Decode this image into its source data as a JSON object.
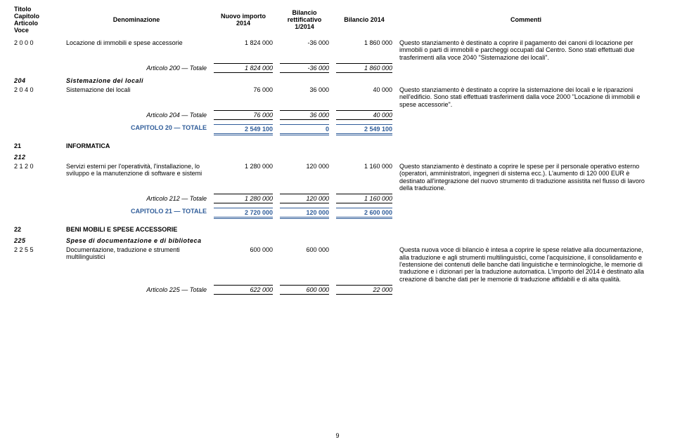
{
  "header": {
    "col1": "Titolo\nCapitolo\nArticolo\nVoce",
    "col2": "Denominazione",
    "col3": "Nuovo importo\n2014",
    "col4": "Bilancio\nrettificativo\n1/2014",
    "col5": "Bilancio 2014",
    "col6": "Commenti"
  },
  "rows": {
    "r2000": {
      "code": "2 0 0 0",
      "denom": "Locazione di immobili e spese accessorie",
      "v1": "1 824 000",
      "v2": "-36 000",
      "v3": "1 860 000",
      "comment": "Questo stanziamento è destinato a coprire il pagamento dei canoni di locazione per immobili o parti di immobili e parcheggi occupati dal Centro. Sono stati effettuati due trasferimenti alla voce 2040 \"Sistemazione dei locali\"."
    },
    "a200t": {
      "label": "Articolo 200 — Totale",
      "v1": "1 824 000",
      "v2": "-36 000",
      "v3": "1 860 000"
    },
    "s204": {
      "code": "204",
      "denom": "Sistemazione dei locali"
    },
    "r2040": {
      "code": "2 0 4 0",
      "denom": "Sistemazione dei locali",
      "v1": "76 000",
      "v2": "36 000",
      "v3": "40 000",
      "comment": "Questo stanziamento è destinato a coprire la sistemazione dei locali e le riparazioni nell'edificio. Sono stati effettuati trasferimenti dalla voce 2000 \"Locazione di immobili e spese accessorie\"."
    },
    "a204t": {
      "label": "Articolo 204 — Totale",
      "v1": "76 000",
      "v2": "36 000",
      "v3": "40 000"
    },
    "cap20": {
      "label": "CAPITOLO 20 — TOTALE",
      "v1": "2 549 100",
      "v2": "0",
      "v3": "2 549 100"
    },
    "s21": {
      "code": "21",
      "denom": "INFORMATICA"
    },
    "s212": {
      "code": "212",
      "denom": ""
    },
    "r2120": {
      "code": "2 1 2 0",
      "denom": "Servizi esterni per l'operatività, l'installazione, lo sviluppo e la manutenzione di software e sistemi",
      "v1": "1 280 000",
      "v2": "120 000",
      "v3": "1 160 000",
      "comment": "Questo stanziamento è destinato a coprire le spese per il personale operativo esterno (operatori, amministratori, ingegneri di sistema ecc.). L'aumento di 120 000 EUR è destinato all'integrazione del nuovo strumento di traduzione assistita nel flusso di lavoro della traduzione."
    },
    "a212t": {
      "label": "Articolo 212 — Totale",
      "v1": "1 280 000",
      "v2": "120 000",
      "v3": "1 160 000"
    },
    "cap21": {
      "label": "CAPITOLO 21 — TOTALE",
      "v1": "2 720 000",
      "v2": "120 000",
      "v3": "2 600 000"
    },
    "s22": {
      "code": "22",
      "denom": "BENI MOBILI E SPESE ACCESSORIE"
    },
    "s225": {
      "code": "225",
      "denom": "Spese di documentazione e di biblioteca"
    },
    "r2255": {
      "code": "2 2 5 5",
      "denom": "Documentazione, traduzione e strumenti multilinguistici",
      "v1": "600 000",
      "v2": "600 000",
      "v3": "",
      "comment": "Questa nuova voce di bilancio è intesa a coprire le spese relative alla documentazione, alla traduzione e agli strumenti multilinguistici, come l'acquisizione, il consolidamento e l'estensione dei contenuti delle banche dati linguistiche e terminologiche, le memorie di traduzione e i dizionari per la traduzione automatica. L'importo del 2014 è destinato alla creazione di banche dati per le memorie di traduzione affidabili e di alta qualità."
    },
    "a225t": {
      "label": "Articolo 225 — Totale",
      "v1": "622 000",
      "v2": "600 000",
      "v3": "22 000"
    }
  },
  "page": "9"
}
